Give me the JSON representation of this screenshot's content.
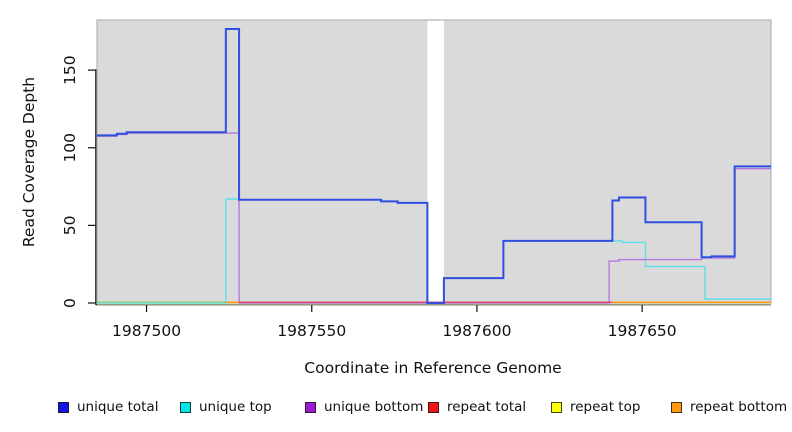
{
  "chart_data": {
    "type": "line",
    "subtype": "step",
    "title": "",
    "xlabel": "Coordinate in Reference Genome",
    "ylabel": "Read Coverage Depth",
    "xlim": [
      1987485,
      1987689
    ],
    "ylim": [
      0,
      182.3
    ],
    "xticks": [
      1987500,
      1987550,
      1987600,
      1987650
    ],
    "yticks": [
      0,
      50,
      100,
      150
    ],
    "grid": false,
    "plot_bg_color": "#dadada",
    "plot_border_color": "#aaaaaa",
    "gap_region": {
      "from": 1987585,
      "to": 1987590,
      "color": "#ffffff"
    },
    "series": [
      {
        "name": "unique total",
        "legend_color": "#1414e6",
        "line_color": "#2f4fe0",
        "points": [
          [
            1987485,
            108
          ],
          [
            1987491,
            109
          ],
          [
            1987494,
            110
          ],
          [
            1987524,
            176.5
          ],
          [
            1987528,
            66.5
          ],
          [
            1987571,
            65.5
          ],
          [
            1987576,
            64.5
          ],
          [
            1987585,
            0
          ],
          [
            1987590,
            16
          ],
          [
            1987608,
            40
          ],
          [
            1987641,
            66
          ],
          [
            1987643,
            68
          ],
          [
            1987651,
            52
          ],
          [
            1987668,
            29.5
          ],
          [
            1987671,
            30
          ],
          [
            1987678,
            88
          ]
        ]
      },
      {
        "name": "unique top",
        "legend_color": "#00e8e8",
        "line_color": "#5edee9",
        "points": [
          [
            1987485,
            0
          ],
          [
            1987524,
            67
          ],
          [
            1987528,
            66.5
          ],
          [
            1987571,
            65.5
          ],
          [
            1987576,
            64.5
          ],
          [
            1987585,
            0
          ],
          [
            1987590,
            16
          ],
          [
            1987608,
            40
          ],
          [
            1987644,
            39
          ],
          [
            1987651,
            23.5
          ],
          [
            1987669,
            2.5
          ]
        ]
      },
      {
        "name": "unique bottom",
        "legend_color": "#9c1ad1",
        "line_color": "#b478dd",
        "points": [
          [
            1987485,
            107.5
          ],
          [
            1987491,
            108.5
          ],
          [
            1987494,
            109.5
          ],
          [
            1987528,
            0
          ],
          [
            1987640,
            27
          ],
          [
            1987643,
            28
          ],
          [
            1987668,
            29
          ],
          [
            1987678,
            86.5
          ]
        ]
      },
      {
        "name": "repeat total",
        "legend_color": "#ee1515",
        "line_color": "#dc4a74",
        "points": [
          [
            1987485,
            0
          ]
        ]
      },
      {
        "name": "repeat top",
        "legend_color": "#ffff00",
        "line_color": "#efe9c4",
        "points": [
          [
            1987485,
            0
          ]
        ]
      },
      {
        "name": "repeat bottom",
        "legend_color": "#ff9912",
        "line_color": "#ff9912",
        "points": [
          [
            1987485,
            0
          ]
        ]
      }
    ],
    "baseline_underline": {
      "from": 1987485,
      "to": 1987689,
      "color": "#efe9c4",
      "represents": "repeat top"
    },
    "baseline_segments": [
      {
        "from": 1987485,
        "to": 1987524,
        "color": "#8bd18b",
        "represents": "unique top over repeat top"
      },
      {
        "from": 1987524,
        "to": 1987528,
        "color": "#ff9912",
        "represents": "repeat bottom"
      },
      {
        "from": 1987528,
        "to": 1987641,
        "color": "#dc4a74",
        "represents": "repeat total"
      },
      {
        "from": 1987641,
        "to": 1987689,
        "color": "#ff9912",
        "represents": "repeat bottom"
      }
    ]
  },
  "legend": {
    "items": [
      {
        "label": "unique total",
        "color": "#1414e6"
      },
      {
        "label": "unique top",
        "color": "#00e8e8"
      },
      {
        "label": "unique bottom",
        "color": "#9c1ad1"
      },
      {
        "label": "repeat total",
        "color": "#ee1515"
      },
      {
        "label": "repeat top",
        "color": "#ffff00"
      },
      {
        "label": "repeat bottom",
        "color": "#ff9912"
      }
    ],
    "item_lefts": [
      58,
      180,
      305,
      428,
      551,
      671
    ]
  }
}
